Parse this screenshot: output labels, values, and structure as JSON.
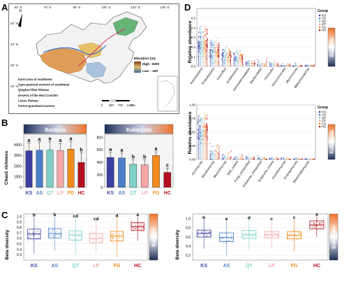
{
  "labels": {
    "A": "A",
    "B": "B",
    "C": "C",
    "D": "D"
  },
  "colors": {
    "KS": "#3b3fa0",
    "AS": "#4a7ec9",
    "QT": "#7fd1c8",
    "LP": "#f4a7a5",
    "FG": "#f08a1a",
    "HC": "#b40f1e",
    "bar_gradient_start": "#1f2f5a",
    "bar_gradient_end": "#f0742a",
    "map_tibet": "#e09d58",
    "map_karst": "#a9c3de",
    "map_forest": "#66b476",
    "map_river": "#1c5bd6"
  },
  "groups": [
    "KS",
    "AS",
    "QT",
    "LP",
    "FG",
    "HC"
  ],
  "map": {
    "lon_ticks": [
      "60° E",
      "75° E",
      "90° E",
      "105° E",
      "120° E",
      "135° E"
    ],
    "lat_ticks": [
      "50° N",
      "40° N",
      "30° N",
      "20° N"
    ],
    "elevation_title": "Elevation (m):",
    "elevation_high": "High : 8305",
    "elevation_low": "Low : -183",
    "legend": [
      "Karst area of southwest",
      "Agro-pastoral ecotone of southwest",
      "Qinghai-Tibet Plateau",
      "Deserts of the Hexi Corridor",
      "Loess Plateau",
      "Forest-grassland ecotone"
    ],
    "scale_ticks": [
      "0",
      "350",
      "700",
      "1400"
    ],
    "scale_unit": "km",
    "north": "N"
  },
  "panelB": {
    "ylabel": "Chao1 richness",
    "titles": [
      "Bacteria",
      "Eukaryota"
    ]
  },
  "panelC": {
    "ylabel": "Beta diversity",
    "strips": [
      "Bacteria",
      "Eukaryota"
    ]
  },
  "panelD": {
    "ylabel": "Relative abandance",
    "group_title": "Group",
    "strips": [
      "Bacteria",
      "Eukaryota"
    ]
  },
  "chart_data": [
    {
      "type": "bar",
      "name": "B-Bacteria",
      "title": "Bacteria",
      "ylabel": "Chao1 richness",
      "categories": [
        "KS",
        "AS",
        "QT",
        "LP",
        "FG",
        "HC"
      ],
      "values": [
        3450,
        3500,
        3520,
        3480,
        3600,
        2350
      ],
      "errors": [
        700,
        750,
        800,
        650,
        700,
        900
      ],
      "letters": [
        "a",
        "a",
        "a",
        "a",
        "a",
        "b"
      ],
      "ylim": [
        0,
        5000
      ],
      "yticks": [
        "0",
        "1000",
        "2000",
        "3000",
        "4000"
      ]
    },
    {
      "type": "bar",
      "name": "B-Eukaryota",
      "title": "Eukaryota",
      "categories": [
        "KS",
        "AS",
        "QT",
        "LP",
        "FG",
        "HC"
      ],
      "values": [
        480,
        470,
        370,
        360,
        510,
        240
      ],
      "errors": [
        80,
        80,
        70,
        80,
        60,
        70
      ],
      "letters": [
        "a",
        "a",
        "b",
        "b",
        "a",
        "c"
      ],
      "ylim": [
        0,
        850
      ],
      "yticks": [
        "0",
        "200",
        "400",
        "600",
        "800"
      ]
    },
    {
      "type": "box",
      "name": "C-Bacteria",
      "ylabel": "Beta diversity",
      "categories": [
        "KS",
        "AS",
        "QT",
        "LP",
        "FG",
        "HC"
      ],
      "medians": [
        0.68,
        0.69,
        0.66,
        0.6,
        0.64,
        0.82
      ],
      "q1": [
        0.59,
        0.61,
        0.57,
        0.52,
        0.55,
        0.75
      ],
      "q3": [
        0.77,
        0.78,
        0.74,
        0.69,
        0.73,
        0.89
      ],
      "whisker_low": [
        0.32,
        0.38,
        0.3,
        0.34,
        0.26,
        0.55
      ],
      "whisker_high": [
        0.99,
        1.0,
        0.97,
        0.92,
        0.98,
        1.0
      ],
      "letters": [
        "b",
        "b",
        "cd",
        "cd",
        "d",
        "a"
      ],
      "ylim": [
        0.2,
        1.05
      ],
      "yticks": [
        "0.3",
        "0.4",
        "0.5",
        "0.6",
        "0.7",
        "0.8",
        "0.9",
        "1.0"
      ]
    },
    {
      "type": "box",
      "name": "C-Eukaryota",
      "categories": [
        "KS",
        "AS",
        "QT",
        "LP",
        "FG",
        "HC"
      ],
      "medians": [
        0.68,
        0.59,
        0.65,
        0.65,
        0.64,
        0.86
      ],
      "q1": [
        0.6,
        0.5,
        0.57,
        0.58,
        0.56,
        0.78
      ],
      "q3": [
        0.75,
        0.69,
        0.74,
        0.72,
        0.72,
        0.95
      ],
      "whisker_low": [
        0.35,
        0.2,
        0.3,
        0.35,
        0.3,
        0.6
      ],
      "whisker_high": [
        0.98,
        0.95,
        0.97,
        0.95,
        0.98,
        1.05
      ],
      "letters": [
        "b",
        "e",
        "d",
        "c",
        "c",
        "a"
      ],
      "ylim": [
        0.1,
        1.1
      ],
      "yticks": [
        "0.2",
        "0.4",
        "0.6",
        "0.8",
        "1.0"
      ]
    },
    {
      "type": "scatter",
      "name": "D-Bacteria",
      "ylabel": "Relative abandance",
      "categories": [
        "Actinobacteria",
        "Proteobacteria",
        "Chloroflexi",
        "Acidobacteria",
        "Gemmatimonadetes",
        "Bacteroidetes",
        "Firmicutes",
        "Verrucomicrobia",
        "Myxococcota",
        "Methylomirabilota"
      ],
      "medians": [
        0.25,
        0.18,
        0.12,
        0.1,
        0.04,
        0.03,
        0.02,
        0.01,
        0.01,
        0.008
      ],
      "max": [
        0.52,
        0.45,
        0.3,
        0.24,
        0.12,
        0.2,
        0.1,
        0.09,
        0.07,
        0.05
      ],
      "ylim": [
        0,
        0.6
      ],
      "yticks": [
        "0.0",
        "0.1",
        "0.2",
        "0.3",
        "0.4",
        "0.5"
      ]
    },
    {
      "type": "scatter",
      "name": "D-Eukaryota",
      "categories": [
        "Ascomycota",
        "Basidiomycota",
        "Mucoromycota",
        "SAR_norank",
        "Fungi_unclassified",
        "Eukaryota_unclassified",
        "Eukaryota_norank",
        "Chytridiomycota",
        "Zoopagomycota",
        "Blastocladiomycota"
      ],
      "medians": [
        0.55,
        0.12,
        0.05,
        0.03,
        0.02,
        0.015,
        0.01,
        0.008,
        0.005,
        0.003
      ],
      "max": [
        0.98,
        0.6,
        0.4,
        0.3,
        0.25,
        0.2,
        0.15,
        0.12,
        0.08,
        0.05
      ],
      "ylim": [
        0,
        1.0
      ],
      "yticks": [
        "0.00",
        "0.25",
        "0.50",
        "0.75",
        "1.00"
      ]
    }
  ]
}
